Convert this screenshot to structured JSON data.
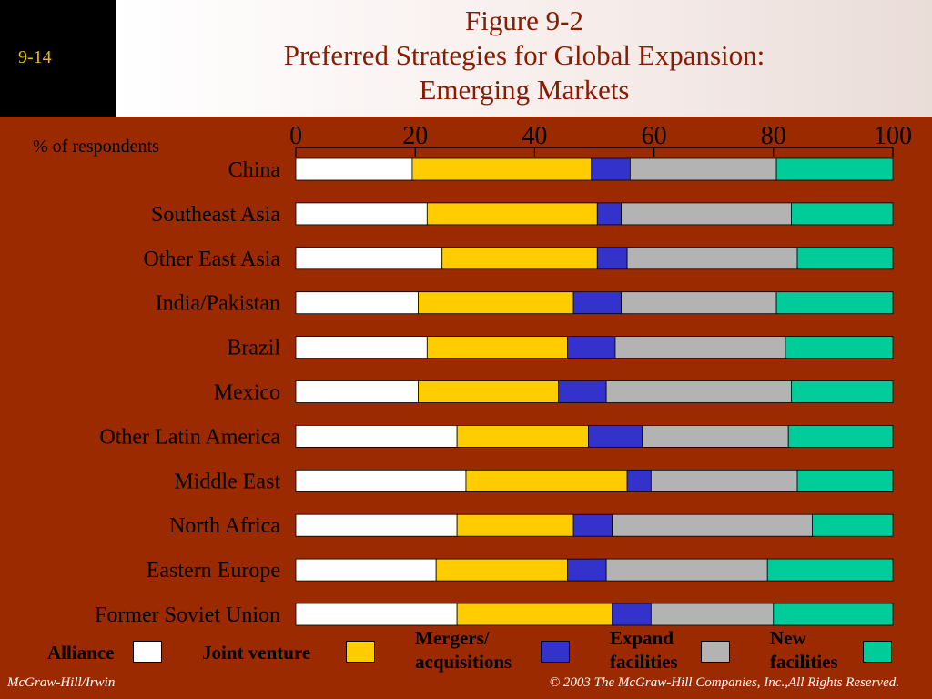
{
  "header": {
    "page_number": "9-14",
    "title_line1": "Figure 9-2",
    "title_line2": "Preferred Strategies for Global Expansion:",
    "title_line3": "Emerging Markets"
  },
  "y_note": "% of respondents",
  "colors": {
    "background": "#9c2a00",
    "alliance": "#ffffff",
    "joint_venture": "#ffcc00",
    "mergers": "#3333cc",
    "expand": "#b3b3b3",
    "new": "#00cc99"
  },
  "legend": {
    "alliance": "Alliance",
    "joint_venture": "Joint venture",
    "mergers_line1": "Mergers/",
    "mergers_line2": "acquisitions",
    "expand_line1": "Expand",
    "expand_line2": "facilities",
    "new_line1": "New",
    "new_line2": "facilities"
  },
  "footer": {
    "left": "McGraw-Hill/Irwin",
    "right": "© 2003 The McGraw-Hill Companies, Inc.,All Rights Reserved."
  },
  "chart_data": {
    "type": "bar",
    "orientation": "horizontal",
    "stacked": true,
    "xlim": [
      0,
      100
    ],
    "xticks": [
      "0",
      "20",
      "40",
      "60",
      "80",
      "100"
    ],
    "categories": [
      "China",
      "Southeast Asia",
      "Other East Asia",
      "India/Pakistan",
      "Brazil",
      "Mexico",
      "Other Latin America",
      "Middle East",
      "North Africa",
      "Eastern Europe",
      "Former Soviet Union"
    ],
    "series": [
      {
        "name": "Alliance",
        "color": "#ffffff",
        "values": [
          19.5,
          22,
          24.5,
          20.5,
          22,
          20.5,
          27,
          28.5,
          27,
          23.5,
          27
        ]
      },
      {
        "name": "Joint venture",
        "color": "#ffcc00",
        "values": [
          30,
          28.5,
          26,
          26,
          23.5,
          23.5,
          22,
          27,
          19.5,
          22,
          26
        ]
      },
      {
        "name": "Mergers/acquisitions",
        "color": "#3333cc",
        "values": [
          6.5,
          4,
          5,
          8,
          8,
          8,
          9,
          4,
          6.5,
          6.5,
          6.5
        ]
      },
      {
        "name": "Expand facilities",
        "color": "#b3b3b3",
        "values": [
          24.5,
          28.5,
          28.5,
          26,
          28.5,
          31,
          24.5,
          24.5,
          33.5,
          27,
          20.5
        ]
      },
      {
        "name": "New facilities",
        "color": "#00cc99",
        "values": [
          19.5,
          17,
          16,
          19.5,
          18,
          17,
          17.5,
          16,
          13.5,
          21,
          20
        ]
      }
    ]
  }
}
